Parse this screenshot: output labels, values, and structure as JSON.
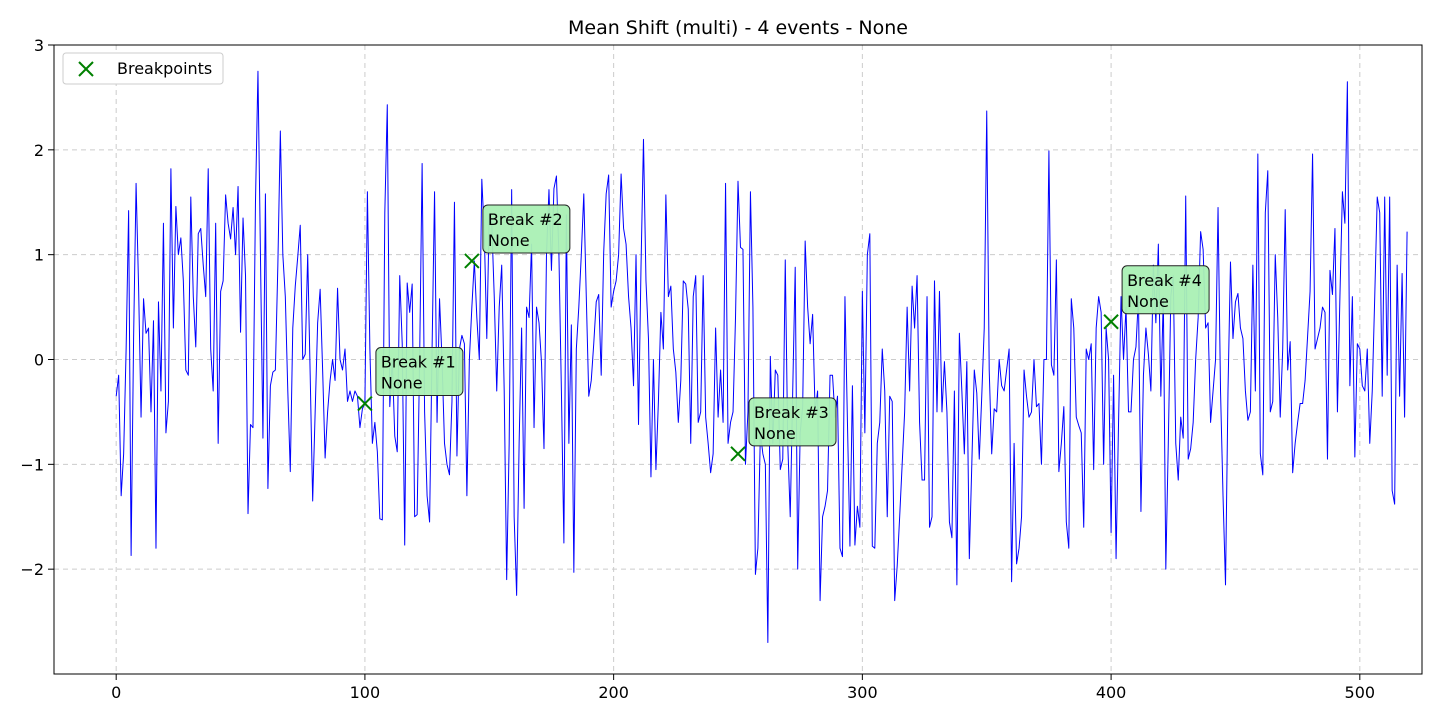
{
  "chart_data": {
    "type": "line",
    "title": "Mean Shift (multi) - 4 events - None",
    "xlabel": "",
    "ylabel": "",
    "xlim": [
      -25,
      525
    ],
    "ylim": [
      -3.0,
      3.0
    ],
    "xticks": [
      0,
      100,
      200,
      300,
      400,
      500
    ],
    "yticks": [
      -2,
      -1,
      0,
      1,
      2,
      3
    ],
    "ytick_labels": [
      "−2",
      "−1",
      "0",
      "1",
      "2",
      "3"
    ],
    "grid": true,
    "legend": {
      "position": "top-left",
      "entries": [
        "Breakpoints"
      ]
    },
    "colors": {
      "series": "#0000ff",
      "breakpoints": "#008000",
      "annotation_fill": "#aaf0b4",
      "grid": "#cccccc"
    },
    "series": [
      {
        "values": [
          -0.35,
          -0.15,
          -1.3,
          -0.9,
          0.1,
          1.42,
          -1.87,
          0.2,
          1.68,
          0.7,
          -0.55,
          0.58,
          0.25,
          0.3,
          -0.5,
          0.37,
          -1.8,
          0.55,
          -0.3,
          1.3,
          -0.7,
          -0.4,
          1.82,
          0.3,
          1.46,
          1.0,
          1.16,
          0.75,
          -0.1,
          -0.15,
          1.55,
          0.6,
          0.12,
          1.2,
          1.25,
          0.9,
          0.6,
          1.82,
          0.1,
          -0.3,
          1.3,
          -0.8,
          0.65,
          0.75,
          1.57,
          1.3,
          1.15,
          1.45,
          1.0,
          1.65,
          0.26,
          1.35,
          0.8,
          -1.47,
          -0.62,
          -0.65,
          1.5,
          2.75,
          1.0,
          -0.75,
          1.58,
          -1.23,
          -0.25,
          -0.12,
          -0.1,
          0.9,
          2.18,
          1.0,
          0.6,
          -0.3,
          -1.07,
          0.3,
          0.7,
          0.98,
          1.28,
          0.0,
          0.05,
          1.0,
          -0.15,
          -1.35,
          -0.5,
          0.35,
          0.67,
          -0.1,
          -0.94,
          -0.5,
          -0.2,
          0.0,
          -0.2,
          0.68,
          0.0,
          -0.1,
          0.1,
          -0.4,
          -0.3,
          -0.4,
          -0.3,
          -0.35,
          -0.65,
          -0.47,
          -0.42,
          1.6,
          0.1,
          -0.8,
          -0.6,
          -0.88,
          -1.52,
          -1.53,
          1.4,
          2.43,
          -0.45,
          0.0,
          -0.73,
          -0.88,
          0.8,
          0.15,
          -1.77,
          0.73,
          0.45,
          0.72,
          -1.5,
          -1.48,
          0.0,
          1.87,
          -0.5,
          -1.3,
          -1.55,
          0.1,
          1.6,
          -0.6,
          0.58,
          0.0,
          -0.8,
          -1.0,
          -1.1,
          -0.4,
          1.5,
          -0.92,
          0.1,
          0.23,
          0.15,
          -1.3,
          0.0,
          0.5,
          0.94,
          0.4,
          0.0,
          1.72,
          1.2,
          0.2,
          1.38,
          1.3,
          0.6,
          -0.3,
          0.5,
          0.9,
          -0.3,
          -2.1,
          -0.8,
          1.62,
          -1.5,
          -2.25,
          -0.8,
          0.3,
          -1.42,
          0.5,
          0.4,
          1.1,
          -0.65,
          0.5,
          0.35,
          -0.03,
          -0.85,
          1.0,
          1.62,
          0.85,
          1.63,
          1.75,
          1.0,
          -0.3,
          -1.75,
          1.38,
          -0.8,
          0.33,
          -2.03,
          0.1,
          0.5,
          1.0,
          1.58,
          0.6,
          -0.35,
          -0.2,
          0.15,
          0.55,
          0.62,
          -0.15,
          1.02,
          1.58,
          1.76,
          0.5,
          0.65,
          0.75,
          1.0,
          1.77,
          1.25,
          1.1,
          0.6,
          0.3,
          -0.25,
          1.0,
          -0.62,
          0.88,
          2.1,
          0.75,
          0.2,
          -1.12,
          0.0,
          -1.05,
          -0.4,
          0.45,
          0.1,
          1.57,
          0.6,
          0.7,
          0.1,
          -0.12,
          -0.6,
          -0.2,
          0.75,
          0.72,
          0.48,
          -0.8,
          0.6,
          0.8,
          -0.6,
          -0.5,
          0.8,
          -0.55,
          -0.8,
          -1.08,
          -0.9,
          0.3,
          -0.55,
          -0.1,
          -0.6,
          1.68,
          -0.8,
          -0.6,
          -0.5,
          0.4,
          1.7,
          1.07,
          1.05,
          -1.0,
          -0.5,
          1.6,
          0.5,
          -2.05,
          -1.8,
          -0.7,
          -0.9,
          -1.0,
          -2.7,
          0.03,
          -0.8,
          -0.1,
          -0.15,
          -1.05,
          -0.95,
          0.95,
          -0.8,
          -1.5,
          -0.3,
          0.88,
          -2.0,
          -0.7,
          -0.45,
          1.13,
          0.5,
          0.15,
          0.43,
          -0.5,
          -0.3,
          -2.3,
          -1.5,
          -1.4,
          -1.25,
          -0.15,
          -0.15,
          -0.55,
          -0.35,
          -1.8,
          -1.88,
          0.6,
          -0.6,
          -1.78,
          -0.25,
          -1.77,
          -1.4,
          -1.6,
          0.65,
          -0.7,
          1.0,
          1.2,
          -1.78,
          -1.8,
          -0.8,
          -0.6,
          0.1,
          -0.3,
          -1.5,
          -0.35,
          -0.4,
          -2.3,
          -1.97,
          -1.5,
          -1.0,
          -0.5,
          0.5,
          -0.3,
          0.7,
          0.3,
          0.8,
          -0.6,
          -1.15,
          -1.15,
          0.6,
          -1.6,
          -1.5,
          0.75,
          -0.5,
          0.65,
          -0.5,
          -0.02,
          -0.5,
          -1.55,
          -1.7,
          -0.3,
          -2.15,
          0.25,
          -0.3,
          -0.9,
          -0.02,
          -1.9,
          -1.0,
          -0.1,
          -0.32,
          -0.95,
          -0.35,
          0.3,
          2.37,
          -0.1,
          -0.9,
          -0.47,
          -0.5,
          0.0,
          -0.25,
          -0.3,
          -0.1,
          0.1,
          -2.12,
          -0.8,
          -1.95,
          -1.8,
          -1.5,
          -0.1,
          -0.35,
          -0.55,
          -0.5,
          0.0,
          -0.45,
          -0.42,
          -1.0,
          0.0,
          0.0,
          1.99,
          -0.05,
          -0.15,
          0.95,
          -1.07,
          -0.8,
          -0.45,
          -1.55,
          -1.8,
          0.58,
          0.3,
          -0.55,
          -0.63,
          -0.7,
          -1.6,
          0.1,
          0.0,
          0.15,
          -1.05,
          0.3,
          0.6,
          0.45,
          -1.0,
          0.3,
          0.0,
          -1.65,
          -0.15,
          -1.9,
          -0.6,
          0.6,
          0.0,
          0.5,
          -0.5,
          -0.5,
          0.0,
          0.12,
          0.6,
          -1.45,
          -0.15,
          0.3,
          0.05,
          -0.3,
          0.9,
          0.35,
          1.1,
          -0.35,
          0.6,
          -2.0,
          -0.8,
          0.6,
          0.8,
          -0.8,
          -1.15,
          -0.55,
          -0.75,
          1.56,
          -0.95,
          -0.85,
          -0.6,
          0.0,
          0.4,
          1.22,
          1.05,
          0.3,
          0.35,
          -0.6,
          -0.3,
          0.0,
          1.45,
          -0.3,
          -1.3,
          -2.15,
          -0.3,
          0.93,
          0.2,
          0.55,
          0.63,
          0.3,
          0.2,
          -0.3,
          -0.58,
          -0.5,
          0.9,
          -0.3,
          1.96,
          -0.9,
          -1.1,
          1.4,
          1.8,
          -0.5,
          -0.4,
          1.0,
          0.4,
          -0.55,
          0.1,
          1.43,
          -0.1,
          0.17,
          -1.08,
          -0.8,
          -0.6,
          -0.42,
          -0.42,
          -0.2,
          0.22,
          0.65,
          1.96,
          0.1,
          0.2,
          0.3,
          0.5,
          0.45,
          -0.95,
          0.85,
          0.62,
          1.25,
          -0.5,
          0.6,
          1.6,
          1.3,
          2.65,
          -0.25,
          0.6,
          -0.93,
          0.15,
          0.1,
          -0.25,
          -0.3,
          0.1,
          -0.8,
          -0.3,
          0.6,
          1.55,
          1.4,
          -0.35,
          1.55,
          -0.15,
          1.55,
          -1.25,
          -1.38,
          0.9,
          -0.35,
          0.82,
          -0.55,
          1.22
        ]
      }
    ],
    "breakpoints": [
      {
        "x": 100,
        "y": -0.42,
        "label_line1": "Break #1",
        "label_line2": "None"
      },
      {
        "x": 143,
        "y": 0.94,
        "label_line1": "Break #2",
        "label_line2": "None"
      },
      {
        "x": 250,
        "y": -0.9,
        "label_line1": "Break #3",
        "label_line2": "None"
      },
      {
        "x": 400,
        "y": 0.36,
        "label_line1": "Break #4",
        "label_line2": "None"
      }
    ]
  }
}
